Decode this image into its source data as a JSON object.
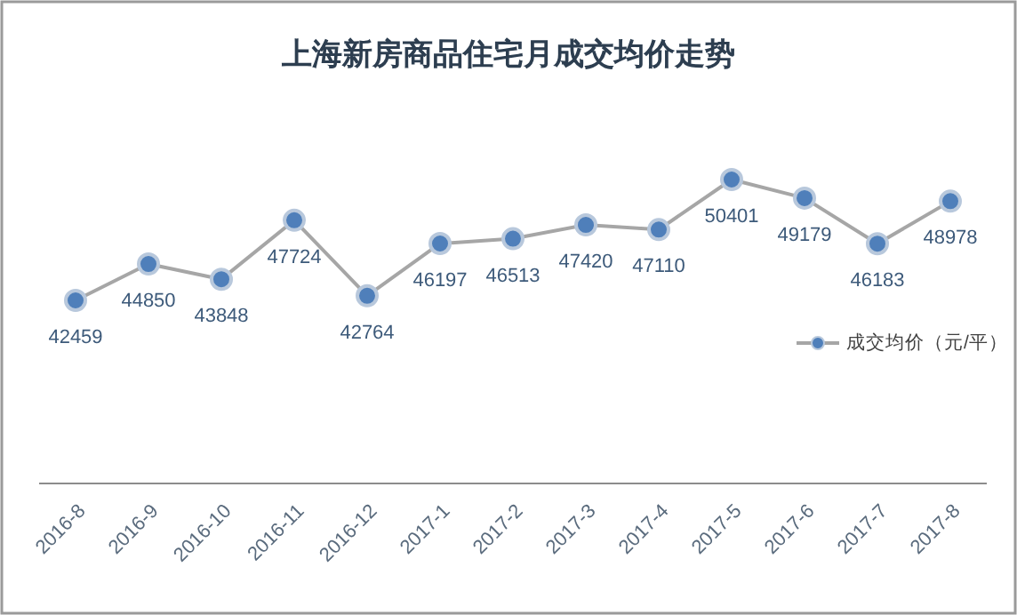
{
  "chart_data": {
    "type": "line",
    "title": "上海新房商品住宅月成交均价走势",
    "categories": [
      "2016-8",
      "2016-9",
      "2016-10",
      "2016-11",
      "2016-12",
      "2017-1",
      "2017-2",
      "2017-3",
      "2017-4",
      "2017-5",
      "2017-6",
      "2017-7",
      "2017-8"
    ],
    "series": [
      {
        "name": "成交均价（元/平）",
        "color": "#4f7fba",
        "values": [
          42459,
          44850,
          43848,
          47724,
          42764,
          46197,
          46513,
          47420,
          47110,
          50401,
          49179,
          46183,
          48978
        ]
      }
    ],
    "data_labels": true,
    "marker": "circle",
    "line_style": "solid",
    "legend": "right",
    "tick_labels": "x"
  }
}
